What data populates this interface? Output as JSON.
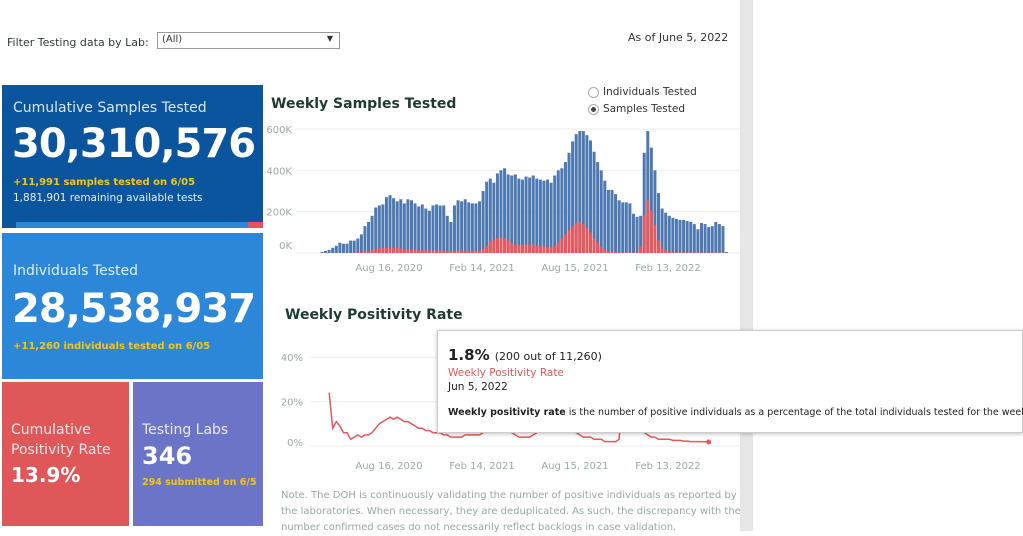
{
  "filter": {
    "label": "Filter Testing data by Lab:",
    "value": "(All)"
  },
  "as_of": "As of June 5, 2022",
  "cards": {
    "cumulative_samples": {
      "title": "Cumulative Samples Tested",
      "value": "30,310,576",
      "delta": "+11,991 samples tested on 6/05",
      "remaining": "1,881,901 remaining available tests",
      "used_fraction": 0.94
    },
    "individuals": {
      "title": "Individuals Tested",
      "value": "28,538,937",
      "delta": "+11,260  individuals  tested on 6/05"
    },
    "positivity": {
      "title1": "Cumulative",
      "title2": "Positivity Rate",
      "value": "13.9%"
    },
    "labs": {
      "title": "Testing Labs",
      "value": "346",
      "delta": "294 submitted on 6/5"
    }
  },
  "colors": {
    "dark_blue": "#0b559f",
    "blue": "#2c87d9",
    "red": "#e05759",
    "purple": "#6b74c7",
    "yellow": "#f5c518",
    "bar_blue": "#4e79b0",
    "bar_red": "#e8575b"
  },
  "radio": {
    "options": [
      "Individuals Tested",
      "Samples Tested"
    ],
    "selected": "Samples Tested"
  },
  "chart_data": [
    {
      "type": "bar",
      "title": "Weekly Samples Tested",
      "ylabel": "",
      "ylim": [
        0,
        600000
      ],
      "yticks": [
        "0K",
        "200K",
        "400K",
        "600K"
      ],
      "xticks": [
        "Aug 16, 2020",
        "Feb 14, 2021",
        "Aug 15, 2021",
        "Feb 13, 2022"
      ],
      "first_week": "2020-04-12",
      "unit": "K",
      "series": [
        {
          "values": [
            5,
            10,
            15,
            25,
            35,
            50,
            45,
            45,
            60,
            60,
            70,
            90,
            130,
            150,
            180,
            220,
            230,
            235,
            270,
            280,
            265,
            250,
            260,
            240,
            260,
            255,
            240,
            225,
            235,
            215,
            205,
            230,
            235,
            230,
            230,
            180,
            150,
            230,
            255,
            250,
            260,
            245,
            240,
            240,
            250,
            300,
            345,
            360,
            340,
            385,
            400,
            410,
            380,
            375,
            380,
            360,
            355,
            370,
            365,
            375,
            360,
            355,
            350,
            355,
            340,
            375,
            400,
            410,
            440,
            485,
            540,
            575,
            590,
            590,
            570,
            545,
            490,
            440,
            400,
            350,
            305,
            305,
            285,
            255,
            245,
            245,
            240,
            190,
            175,
            180,
            485,
            590,
            510,
            400,
            290,
            215,
            195,
            180,
            170,
            165,
            160,
            160,
            155,
            150,
            140,
            115,
            145,
            140,
            125,
            130,
            150,
            140,
            130,
            5
          ]
        },
        {
          "values": [
            0,
            0,
            0,
            0,
            0,
            0,
            0,
            0,
            0,
            2,
            3,
            5,
            8,
            10,
            15,
            20,
            22,
            25,
            25,
            24,
            24,
            24,
            22,
            18,
            16,
            16,
            15,
            14,
            14,
            12,
            12,
            12,
            12,
            12,
            12,
            10,
            8,
            10,
            12,
            12,
            12,
            10,
            10,
            10,
            12,
            20,
            35,
            55,
            65,
            72,
            75,
            70,
            60,
            50,
            40,
            40,
            40,
            42,
            40,
            40,
            35,
            35,
            32,
            30,
            30,
            35,
            50,
            70,
            90,
            110,
            130,
            145,
            150,
            140,
            120,
            100,
            70,
            50,
            30,
            15,
            10,
            8,
            5,
            3,
            2,
            2,
            2,
            2,
            3,
            30,
            185,
            255,
            205,
            135,
            60,
            25,
            15,
            8,
            5,
            3,
            3,
            3,
            3,
            3,
            2,
            2,
            2,
            2,
            2,
            2,
            2,
            2,
            2,
            1
          ]
        }
      ]
    },
    {
      "type": "line",
      "title": "Weekly Positivity Rate",
      "ylim": [
        0,
        45
      ],
      "yticks": [
        "0%",
        "20%",
        "40%"
      ],
      "xticks": [
        "Aug 16, 2020",
        "Feb 14, 2021",
        "Aug 15, 2021",
        "Feb 13, 2022"
      ],
      "values": [
        24,
        8,
        11,
        9,
        6,
        6,
        3,
        4,
        5,
        4,
        5,
        5,
        6,
        8,
        10,
        11,
        12,
        13,
        12,
        13,
        12,
        11,
        11,
        10,
        9,
        8,
        8,
        7,
        7,
        6,
        6,
        6,
        5,
        5,
        4,
        4,
        4,
        4,
        5,
        5,
        5,
        5,
        5,
        6,
        8,
        10,
        12,
        13,
        12,
        10,
        8,
        6,
        5,
        4,
        4,
        4,
        4,
        5,
        6,
        7,
        8,
        9,
        10,
        11,
        11,
        10,
        9,
        8,
        7,
        6,
        5,
        4,
        4,
        4,
        3,
        3,
        3,
        2,
        2,
        2,
        2,
        3,
        24,
        30,
        28,
        22,
        14,
        8,
        6,
        5,
        4,
        4,
        3,
        3,
        3,
        3,
        2.5,
        2.5,
        2.5,
        2.2,
        2.2,
        2,
        2,
        2,
        2,
        1.9,
        1.8
      ],
      "first_week": "2020-04-26"
    }
  ],
  "tooltip": {
    "value": "1.8%",
    "detail": "(200 out of  11,260)",
    "measure": "Weekly Positivity Rate",
    "date": "Jun 5, 2022",
    "def_bold": "Weekly positivity rate",
    "def_rest": " is the number of positive individuals as a percentage of the total individuals tested for the week."
  },
  "note": "Note. The DOH is continuously validating the number of positive individuals as reported by the laboratories. When necessary, they are deduplicated. As such, the discrepancy with the number confirmed cases do not necessarily reflect backlogs in case validation."
}
